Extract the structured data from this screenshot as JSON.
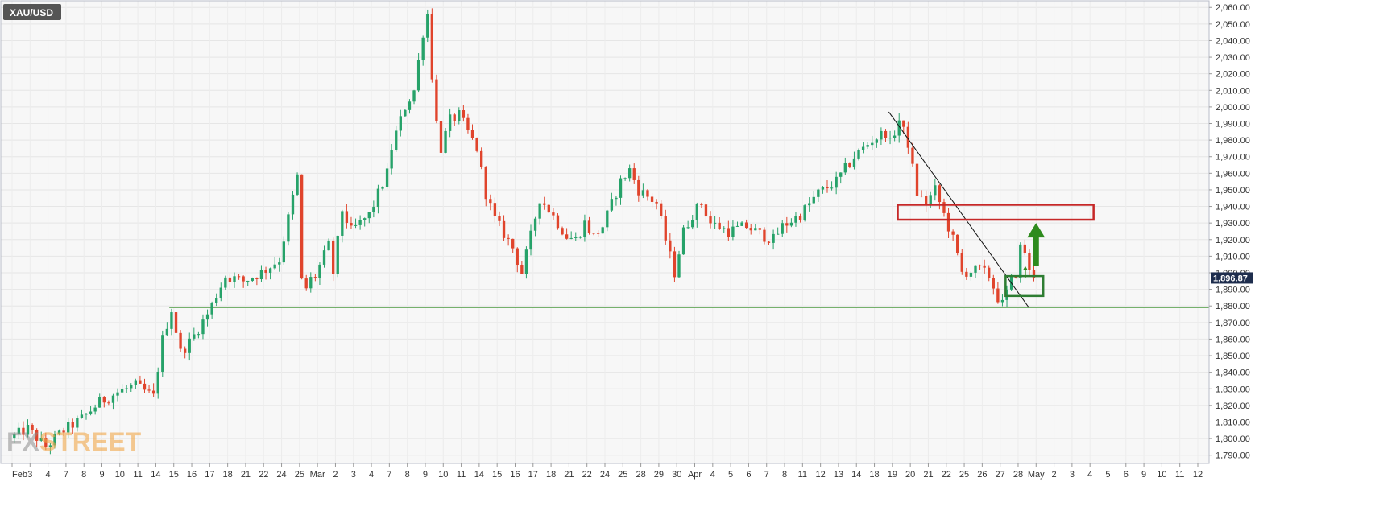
{
  "chart_data": {
    "type": "candlestick",
    "symbol": "XAU/USD",
    "watermark": {
      "left": "FX",
      "right": "STREET"
    },
    "last_price": 1896.87,
    "last_price_label": "1,896.87",
    "y_axis": {
      "min": 1785,
      "max": 2064,
      "ticks": [
        1790,
        1800,
        1810,
        1820,
        1830,
        1840,
        1850,
        1860,
        1870,
        1880,
        1890,
        1900,
        1910,
        1920,
        1930,
        1940,
        1950,
        1960,
        1970,
        1980,
        1990,
        2000,
        2010,
        2020,
        2030,
        2040,
        2050,
        2060
      ],
      "tick_labels": [
        "1,790.00",
        "1,800.00",
        "1,810.00",
        "1,820.00",
        "1,830.00",
        "1,840.00",
        "1,850.00",
        "1,860.00",
        "1,870.00",
        "1,880.00",
        "1,890.00",
        "1,900.00",
        "1,910.00",
        "1,920.00",
        "1,930.00",
        "1,940.00",
        "1,950.00",
        "1,960.00",
        "1,970.00",
        "1,980.00",
        "1,990.00",
        "2,000.00",
        "2,010.00",
        "2,020.00",
        "2,030.00",
        "2,040.00",
        "2,050.00",
        "2,060.00"
      ]
    },
    "x_axis": {
      "labels": [
        "Feb",
        "3",
        "4",
        "7",
        "8",
        "9",
        "10",
        "11",
        "14",
        "15",
        "16",
        "17",
        "18",
        "21",
        "22",
        "24",
        "25",
        "Mar",
        "2",
        "3",
        "4",
        "7",
        "8",
        "9",
        "10",
        "11",
        "14",
        "15",
        "16",
        "17",
        "18",
        "21",
        "22",
        "24",
        "25",
        "28",
        "29",
        "30",
        "Apr",
        "4",
        "5",
        "6",
        "7",
        "8",
        "11",
        "12",
        "13",
        "14",
        "18",
        "19",
        "20",
        "21",
        "22",
        "25",
        "26",
        "27",
        "28",
        "May",
        "2",
        "3",
        "4",
        "5",
        "6",
        "9",
        "10",
        "11",
        "12"
      ],
      "span": [
        0,
        66
      ],
      "future_start": 57
    },
    "grid": true,
    "colors": {
      "up": "#26a269",
      "down": "#e0442c",
      "support": "#4a9a3e",
      "resistance_box": "#c62828",
      "breakout_box": "#2e7d32",
      "arrow": "#2e8b1e",
      "trendline": "#111111",
      "price_line": "#1a2a48",
      "symbol_bg": "#555555"
    },
    "anchors": [
      [
        0,
        1800
      ],
      [
        1,
        1806
      ],
      [
        2,
        1795
      ],
      [
        3,
        1805
      ],
      [
        4,
        1812
      ],
      [
        5,
        1822
      ],
      [
        6,
        1828
      ],
      [
        7,
        1832
      ],
      [
        8,
        1825
      ],
      [
        8.5,
        1860
      ],
      [
        9,
        1878
      ],
      [
        9.5,
        1852
      ],
      [
        10,
        1858
      ],
      [
        11,
        1875
      ],
      [
        12,
        1898
      ],
      [
        13,
        1895
      ],
      [
        14,
        1900
      ],
      [
        15,
        1908
      ],
      [
        16,
        1958
      ],
      [
        16.3,
        1882
      ],
      [
        16.6,
        1895
      ],
      [
        17,
        1898
      ],
      [
        17.8,
        1918
      ],
      [
        18,
        1900
      ],
      [
        18.5,
        1938
      ],
      [
        19,
        1925
      ],
      [
        20,
        1935
      ],
      [
        21,
        1960
      ],
      [
        21.3,
        1978
      ],
      [
        22,
        2000
      ],
      [
        22.5,
        2010
      ],
      [
        23,
        2045
      ],
      [
        23.3,
        2058
      ],
      [
        23.6,
        2000
      ],
      [
        24,
        1975
      ],
      [
        24.5,
        1992
      ],
      [
        25,
        1995
      ],
      [
        25.5,
        1985
      ],
      [
        26,
        1975
      ],
      [
        26.5,
        1948
      ],
      [
        27,
        1932
      ],
      [
        28,
        1915
      ],
      [
        28.5,
        1900
      ],
      [
        29,
        1922
      ],
      [
        29.5,
        1945
      ],
      [
        30,
        1938
      ],
      [
        31,
        1922
      ],
      [
        31.5,
        1920
      ],
      [
        32,
        1930
      ],
      [
        32.5,
        1922
      ],
      [
        33,
        1928
      ],
      [
        34,
        1955
      ],
      [
        34.5,
        1962
      ],
      [
        35,
        1950
      ],
      [
        36,
        1942
      ],
      [
        36.5,
        1920
      ],
      [
        37,
        1900
      ],
      [
        37.5,
        1925
      ],
      [
        38,
        1935
      ],
      [
        38.5,
        1942
      ],
      [
        39,
        1930
      ],
      [
        40,
        1925
      ],
      [
        41,
        1928
      ],
      [
        42,
        1922
      ],
      [
        42.5,
        1920
      ],
      [
        43,
        1928
      ],
      [
        44,
        1935
      ],
      [
        45,
        1948
      ],
      [
        46,
        1955
      ],
      [
        47,
        1970
      ],
      [
        48,
        1980
      ],
      [
        48.8,
        1985
      ],
      [
        49,
        1978
      ],
      [
        49.5,
        1992
      ],
      [
        50,
        1978
      ],
      [
        50.5,
        1948
      ],
      [
        51,
        1942
      ],
      [
        51.5,
        1950
      ],
      [
        52,
        1935
      ],
      [
        52.5,
        1920
      ],
      [
        53,
        1900
      ],
      [
        54,
        1902
      ],
      [
        54.5,
        1898
      ],
      [
        55,
        1885
      ],
      [
        55.3,
        1880
      ],
      [
        55.6,
        1892
      ],
      [
        56,
        1900
      ],
      [
        56.3,
        1918
      ],
      [
        56.6,
        1910
      ],
      [
        56.8,
        1897
      ]
    ],
    "annotations": {
      "trendline": {
        "from": [
          48.8,
          1997
        ],
        "to": [
          56.6,
          1879
        ]
      },
      "support_line": {
        "y": 1879,
        "x_from": 8.75
      },
      "resistance_box": {
        "x": [
          49.3,
          60.2
        ],
        "y": [
          1932,
          1941
        ]
      },
      "breakout_box": {
        "x": [
          55.3,
          57.4
        ],
        "y": [
          1886,
          1898
        ]
      },
      "arrow": {
        "x": 57.0,
        "y_from": 1904,
        "y_to": 1930
      },
      "small_arrow": {
        "x": 56.4,
        "y_from": 1897,
        "y_to": 1904
      }
    }
  }
}
